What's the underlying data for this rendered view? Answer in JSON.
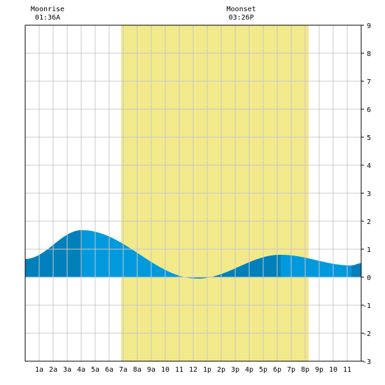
{
  "header": {
    "moonrise_label": "Moonrise",
    "moonrise_time": "01:36A",
    "moonset_label": "Moonset",
    "moonset_time": "03:26P"
  },
  "colors": {
    "daylight": "#f2e98a",
    "tide_light": "#0099dd",
    "tide_dark": "#0080bb",
    "grid": "#c8c8c8",
    "axis": "#000000"
  },
  "chart_data": {
    "type": "area",
    "title": "",
    "xlabel": "",
    "ylabel": "",
    "xlim": [
      0,
      24
    ],
    "ylim": [
      -3,
      9
    ],
    "grid": true,
    "x_tick_labels": [
      "1a",
      "2a",
      "3a",
      "4a",
      "5a",
      "6a",
      "7a",
      "8a",
      "9a",
      "10",
      "11",
      "12",
      "1p",
      "2p",
      "3p",
      "4p",
      "5p",
      "6p",
      "7p",
      "8p",
      "9p",
      "10",
      "11"
    ],
    "y_tick_labels": [
      "-3",
      "-2",
      "-1",
      "0",
      "1",
      "2",
      "3",
      "4",
      "5",
      "6",
      "7",
      "8",
      "9"
    ],
    "daylight_hours": [
      6.85,
      20.25
    ],
    "moonrise_hour": 1.6,
    "moonset_hour": 15.43,
    "tide_extremes": [
      {
        "x": 0.0,
        "y": 0.65
      },
      {
        "x": 4.05,
        "y": 1.68
      },
      {
        "x": 12.3,
        "y": -0.05
      },
      {
        "x": 18.25,
        "y": 0.8
      },
      {
        "x": 23.3,
        "y": 0.42
      },
      {
        "x": 24.0,
        "y": 0.5
      }
    ],
    "shade_bands": [
      {
        "from": 0.0,
        "to": 4.05
      },
      {
        "from": 12.3,
        "to": 18.25
      },
      {
        "from": 23.3,
        "to": 24.0
      }
    ]
  }
}
